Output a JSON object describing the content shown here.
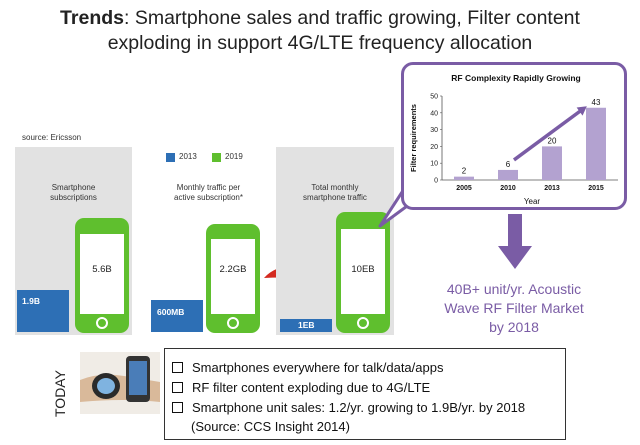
{
  "title": {
    "bold": "Trends",
    "rest_line1": ": Smartphone sales and traffic growing, Filter content",
    "line2": "exploding in support 4G/LTE frequency allocation"
  },
  "source": "source: Ericsson",
  "legend": [
    {
      "label": "2013",
      "color": "#2d6fb5"
    },
    {
      "label": "2019",
      "color": "#5fbf2e"
    }
  ],
  "panels": [
    {
      "label": "Smartphone subscriptions",
      "label_lines": [
        "Smartphone",
        "subscriptions"
      ],
      "value_2013": "1.9B",
      "value_2019": "5.6B"
    },
    {
      "label": "Monthly traffic per active subscription*",
      "label_lines": [
        "Monthly traffic per",
        "active subscription*"
      ],
      "value_2013": "600MB",
      "value_2019": "2.2GB"
    },
    {
      "label": "Total monthly smartphone traffic",
      "label_lines": [
        "Total monthly",
        "smartphone traffic"
      ],
      "value_2013": "1EB",
      "value_2019": "10EB"
    }
  ],
  "chart_data": {
    "type": "bar",
    "title": "RF Complexity Rapidly Growing",
    "categories": [
      "2005",
      "2010",
      "2013",
      "2015"
    ],
    "values": [
      2,
      6,
      20,
      43
    ],
    "xlabel": "Year",
    "ylabel": "Filter requirements",
    "ylim": [
      0,
      50
    ],
    "yticks": [
      "0",
      "10",
      "20",
      "30",
      "40",
      "50"
    ]
  },
  "market": {
    "lines": [
      "40B+ unit/yr. Acoustic",
      "Wave RF Filter Market",
      "by 2018"
    ],
    "text": "40B+ unit/yr. Acoustic Wave RF Filter Market by 2018"
  },
  "today_label": "TODAY",
  "bullets": [
    "Smartphones everywhere for talk/data/apps",
    "RF filter content exploding due to 4G/LTE",
    "Smartphone unit sales: 1.2/yr. growing to 1.9B/yr. by 2018",
    "(Source: CCS Insight 2014)"
  ],
  "colors": {
    "green": "#5fbf2e",
    "blue": "#2d6fb5",
    "purple": "#7a5ca5",
    "red_arrow": "#d42a20"
  }
}
